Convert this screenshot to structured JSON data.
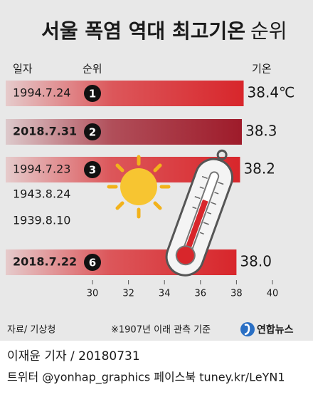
{
  "chart_data": {
    "type": "bar",
    "orientation": "horizontal",
    "title": "서울 폭염 역대 최고기온",
    "title_suffix": "순위",
    "date_label": "일자",
    "rank_label": "순위",
    "value_label": "기온",
    "categories": [
      "1994.7.24",
      "2018.7.31",
      "1994.7.23",
      "1943.8.24",
      "1939.8.10",
      "2018.7.22"
    ],
    "ranks": [
      1,
      2,
      3,
      null,
      null,
      6
    ],
    "values": [
      38.4,
      38.3,
      38.2,
      null,
      null,
      38.0
    ],
    "value_labels": [
      "38.4℃",
      "38.3",
      "38.2",
      null,
      null,
      "38.0"
    ],
    "colors": [
      "#d8262b",
      "#9e1b2a",
      "#d8262b",
      null,
      null,
      "#d8262b"
    ],
    "xlim": [
      30,
      40
    ],
    "xticks": [
      30,
      32,
      34,
      36,
      38,
      40
    ],
    "source": "자료/ 기상청",
    "note": "※1907년 이래 관측 기준"
  },
  "footer": {
    "brand": "연합뉴스",
    "byline": "이재윤 기자 / 20180731",
    "sns": "트위터 @yonhap_graphics  페이스북 tuney.kr/LeYN1"
  }
}
